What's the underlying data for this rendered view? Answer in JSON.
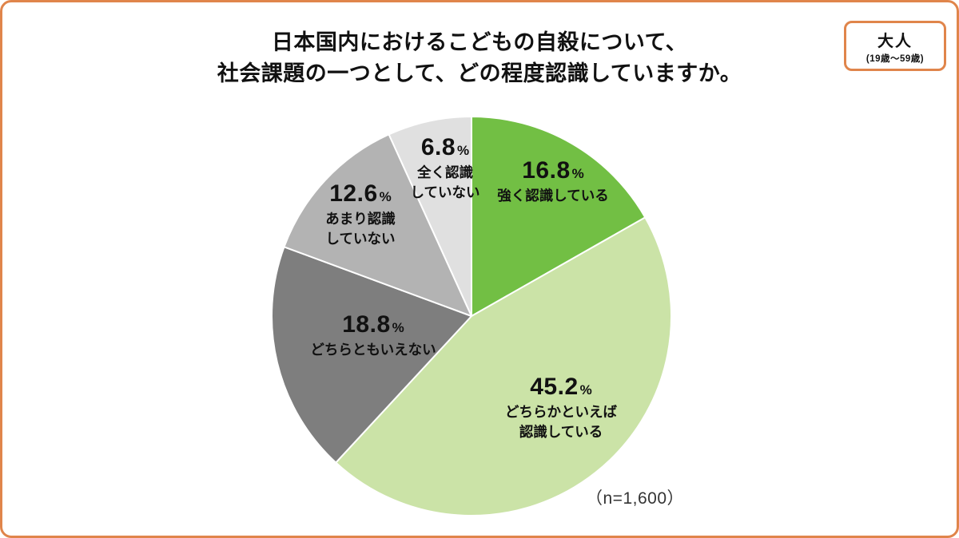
{
  "page": {
    "accent_color": "#E0854B",
    "background": "#FFFFFF"
  },
  "header": {
    "title_line1": "日本国内におけるこどもの自殺について、",
    "title_line2": "社会課題の一つとして、どの程度認識していますか。"
  },
  "badge": {
    "label": "大人",
    "sublabel": "(19歳〜59歳)"
  },
  "footnote": "（n=1,600）",
  "chart_data": {
    "type": "pie",
    "title": "日本国内におけるこどもの自殺について、社会課題の一つとして、どの程度認識していますか。",
    "sample_size_label": "n=1,600",
    "start_angle_deg": 0,
    "direction": "clockwise",
    "legend_position": "labels-on-slices",
    "slices": [
      {
        "label": "強く認識している",
        "label_multiline": "強く認識している",
        "value": 16.8,
        "display": "16.8",
        "unit": "%",
        "color": "#72BF44"
      },
      {
        "label": "どちらかといえば認識している",
        "label_multiline": "どちらかといえば\n認識している",
        "value": 45.2,
        "display": "45.2",
        "unit": "%",
        "color": "#CBE3A7"
      },
      {
        "label": "どちらともいえない",
        "label_multiline": "どちらともいえない",
        "value": 18.8,
        "display": "18.8",
        "unit": "%",
        "color": "#7E7E7E"
      },
      {
        "label": "あまり認識していない",
        "label_multiline": "あまり認識\nしていない",
        "value": 12.6,
        "display": "12.6",
        "unit": "%",
        "color": "#B3B3B3"
      },
      {
        "label": "全く認識していない",
        "label_multiline": "全く認識\nしていない",
        "value": 6.8,
        "display": "6.8",
        "unit": "%",
        "color": "#E0E0E0"
      }
    ]
  }
}
